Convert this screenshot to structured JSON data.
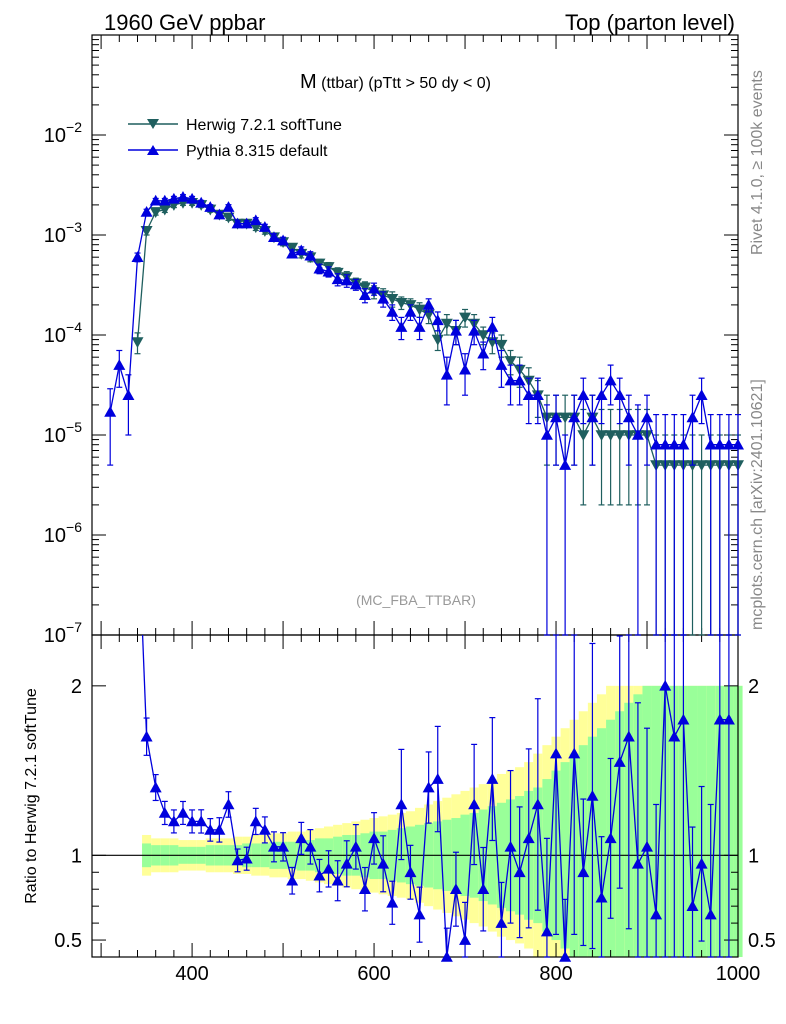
{
  "header": {
    "left": "1960 GeV ppbar",
    "right": "Top (parton level)"
  },
  "side_labels": {
    "rivet": "Rivet 4.1.0, ≥ 100k events",
    "mcplots": "mcplots.cern.ch [arXiv:2401.10621]"
  },
  "chart_data": {
    "type": "line",
    "title_main": "M",
    "title_rest": " (ttbar) (pTtt > 50 dy < 0)",
    "watermark": "(MC_FBA_TTBAR)",
    "xlabel": "",
    "xlim": [
      290,
      1000
    ],
    "xticks": [
      400,
      600,
      800,
      1000
    ],
    "xtick_labels": [
      "400",
      "600",
      "800",
      "1000"
    ],
    "main_ylim": [
      1e-07,
      0.1
    ],
    "main_ylog": true,
    "main_yticks": [
      {
        "base": "10",
        "exp": "−7",
        "value": 1e-07
      },
      {
        "base": "10",
        "exp": "−6",
        "value": 1e-06
      },
      {
        "base": "10",
        "exp": "−5",
        "value": 1e-05
      },
      {
        "base": "10",
        "exp": "−4",
        "value": 0.0001
      },
      {
        "base": "10",
        "exp": "−3",
        "value": 0.001
      },
      {
        "base": "10",
        "exp": "−2",
        "value": 0.01
      }
    ],
    "ratio_ylabel": "Ratio to Herwig 7.2.1 softTune",
    "ratio_ylim": [
      0.4,
      2.3
    ],
    "ratio_yticks": [
      0.5,
      1,
      2
    ],
    "ratio_ytick_labels": [
      "0.5",
      "1",
      "2"
    ],
    "legend": [
      {
        "name": "Herwig 7.2.1 softTune",
        "color": "#1f5f5f",
        "marker": "triangle-down"
      },
      {
        "name": "Pythia 8.315 default",
        "color": "#0000dd",
        "marker": "triangle-up"
      }
    ],
    "x": [
      310,
      320,
      330,
      340,
      350,
      360,
      370,
      380,
      390,
      400,
      410,
      420,
      430,
      440,
      450,
      460,
      470,
      480,
      490,
      500,
      510,
      520,
      530,
      540,
      550,
      560,
      570,
      580,
      590,
      600,
      610,
      620,
      630,
      640,
      650,
      660,
      670,
      680,
      690,
      700,
      710,
      720,
      730,
      740,
      750,
      760,
      770,
      780,
      790,
      800,
      810,
      820,
      830,
      840,
      850,
      860,
      870,
      880,
      890,
      900,
      910,
      920,
      930,
      940,
      950,
      960,
      970,
      980,
      990,
      1000
    ],
    "series": [
      {
        "name": "Herwig 7.2.1 softTune",
        "values": [
          0,
          0,
          0,
          8.5e-05,
          0.0011,
          0.0017,
          0.0018,
          0.002,
          0.0021,
          0.0021,
          0.002,
          0.0018,
          0.0016,
          0.0015,
          0.0013,
          0.0013,
          0.0012,
          0.0011,
          0.00095,
          0.00085,
          0.00075,
          0.00065,
          0.0006,
          0.00052,
          0.00048,
          0.00042,
          0.00038,
          0.00033,
          0.0003,
          0.00027,
          0.00025,
          0.00023,
          0.00021,
          0.0002,
          0.00018,
          0.00016,
          9e-05,
          0.00013,
          0.00011,
          0.00015,
          0.00013,
          0.0001,
          8.5e-05,
          8e-05,
          5.5e-05,
          4.5e-05,
          3.5e-05,
          2.5e-05,
          1.5e-05,
          1.5e-05,
          1.5e-05,
          1.5e-05,
          1e-05,
          1.5e-05,
          1e-05,
          1e-05,
          1e-05,
          1e-05,
          1e-05,
          1e-05,
          5e-06,
          5e-06,
          5e-06,
          5e-06,
          5e-06,
          5e-06,
          5e-06,
          5e-06,
          5e-06,
          5e-06
        ],
        "errors": [
          0,
          0,
          0,
          2e-05,
          0.0001,
          0.00012,
          0.00012,
          0.00012,
          0.00012,
          0.00012,
          0.00012,
          0.00011,
          0.0001,
          0.0001,
          9e-05,
          9e-05,
          9e-05,
          8e-05,
          8e-05,
          7e-05,
          6e-05,
          6e-05,
          6e-05,
          5e-05,
          5e-05,
          5e-05,
          5e-05,
          4e-05,
          4e-05,
          4e-05,
          4e-05,
          4e-05,
          3e-05,
          3e-05,
          3e-05,
          3e-05,
          2e-05,
          3e-05,
          3e-05,
          3e-05,
          3e-05,
          2e-05,
          2e-05,
          2e-05,
          1.5e-05,
          1.5e-05,
          1.2e-05,
          1e-05,
          1e-05,
          1e-05,
          1e-05,
          1e-05,
          8e-06,
          1e-05,
          8e-06,
          8e-06,
          8e-06,
          8e-06,
          8e-06,
          8e-06,
          5e-06,
          5e-06,
          5e-06,
          5e-06,
          5e-06,
          5e-06,
          5e-06,
          5e-06,
          5e-06,
          5e-06
        ]
      },
      {
        "name": "Pythia 8.315 default",
        "values": [
          1.7e-05,
          5e-05,
          2.5e-05,
          0.0006,
          0.0017,
          0.0022,
          0.0022,
          0.0023,
          0.0024,
          0.0023,
          0.0021,
          0.0019,
          0.0016,
          0.0019,
          0.0013,
          0.0013,
          0.0014,
          0.0012,
          0.00095,
          0.00088,
          0.00065,
          0.0007,
          0.00062,
          0.00046,
          0.00043,
          0.00036,
          0.00035,
          0.00032,
          0.00025,
          0.00029,
          0.00023,
          0.00017,
          0.00012,
          0.00017,
          0.00012,
          0.0002,
          0.00014,
          4e-05,
          0.00011,
          4.5e-05,
          0.00011,
          6.5e-05,
          0.00012,
          5e-05,
          3.5e-05,
          3.5e-05,
          2.5e-05,
          2.5e-05,
          1e-05,
          1.5e-05,
          5e-06,
          1.5e-05,
          2.5e-05,
          1.5e-05,
          2.5e-05,
          3.5e-05,
          2.5e-05,
          1.5e-05,
          1e-05,
          1.5e-05,
          8e-06,
          8e-06,
          8e-06,
          8e-06,
          1.5e-05,
          2.5e-05,
          8e-06,
          8e-06,
          8e-06,
          8e-06
        ],
        "errors": [
          1.2e-05,
          2e-05,
          1.5e-05,
          6e-05,
          0.00011,
          0.00012,
          0.00012,
          0.00013,
          0.00013,
          0.00013,
          0.00012,
          0.00011,
          0.0001,
          0.00011,
          9e-05,
          9e-05,
          9e-05,
          8e-05,
          8e-05,
          7e-05,
          6e-05,
          6e-05,
          6e-05,
          5e-05,
          5e-05,
          5e-05,
          5e-05,
          4e-05,
          4e-05,
          4e-05,
          4e-05,
          3e-05,
          3e-05,
          3e-05,
          3e-05,
          3e-05,
          3e-05,
          2e-05,
          3e-05,
          2e-05,
          3e-05,
          2e-05,
          3e-05,
          2e-05,
          1.5e-05,
          1.5e-05,
          1.2e-05,
          1.2e-05,
          1e-05,
          1e-05,
          5e-06,
          1e-05,
          1.2e-05,
          1e-05,
          1.2e-05,
          1.5e-05,
          1.2e-05,
          1e-05,
          1e-05,
          1e-05,
          8e-06,
          8e-06,
          8e-06,
          8e-06,
          1e-05,
          1.2e-05,
          8e-06,
          8e-06,
          8e-06,
          8e-06
        ]
      }
    ],
    "ratio_pythia": [
      null,
      null,
      null,
      null,
      1.7,
      1.4,
      1.25,
      1.2,
      1.25,
      1.2,
      1.2,
      1.15,
      1.15,
      1.3,
      0.97,
      0.98,
      1.2,
      1.15,
      1.05,
      1.05,
      0.85,
      1.1,
      1.05,
      0.88,
      0.92,
      0.85,
      0.95,
      1.05,
      0.8,
      1.1,
      0.95,
      0.72,
      1.3,
      0.9,
      0.65,
      1.4,
      1.45,
      0.38,
      0.8,
      0.5,
      1.3,
      0.8,
      1.45,
      0.6,
      1.05,
      0.9,
      1.1,
      1.3,
      0.55,
      1.6,
      0.37,
      1.6,
      0.9,
      1.35,
      0.75,
      1.1,
      1.55,
      1.7,
      0.95,
      1.05,
      0.65,
      2.0,
      1.7,
      1.8,
      0.7,
      0.95,
      0.65,
      1.8,
      1.8,
      null
    ],
    "ratio_yellow_halfwidth": [
      null,
      null,
      null,
      null,
      0.12,
      0.1,
      0.1,
      0.1,
      0.09,
      0.09,
      0.09,
      0.1,
      0.1,
      0.1,
      0.11,
      0.11,
      0.12,
      0.12,
      0.13,
      0.13,
      0.14,
      0.14,
      0.15,
      0.16,
      0.17,
      0.18,
      0.19,
      0.2,
      0.21,
      0.22,
      0.23,
      0.24,
      0.25,
      0.26,
      0.28,
      0.3,
      0.32,
      0.34,
      0.36,
      0.38,
      0.4,
      0.42,
      0.45,
      0.48,
      0.5,
      0.52,
      0.55,
      0.6,
      0.65,
      0.7,
      0.75,
      0.8,
      0.85,
      0.9,
      0.95,
      1.0,
      1.0,
      1.0,
      1.0,
      1.0,
      1.0,
      1.0,
      1.0,
      1.0,
      1.0,
      1.0,
      1.0,
      1.0,
      1.0,
      1.0
    ],
    "ratio_green_halfwidth": [
      null,
      null,
      null,
      null,
      0.07,
      0.06,
      0.06,
      0.06,
      0.05,
      0.05,
      0.05,
      0.06,
      0.06,
      0.06,
      0.06,
      0.07,
      0.07,
      0.07,
      0.08,
      0.08,
      0.08,
      0.09,
      0.09,
      0.1,
      0.1,
      0.11,
      0.12,
      0.12,
      0.13,
      0.14,
      0.14,
      0.15,
      0.16,
      0.17,
      0.18,
      0.19,
      0.2,
      0.21,
      0.22,
      0.24,
      0.25,
      0.27,
      0.29,
      0.31,
      0.33,
      0.35,
      0.38,
      0.4,
      0.45,
      0.5,
      0.55,
      0.6,
      0.65,
      0.7,
      0.75,
      0.8,
      0.85,
      0.9,
      0.95,
      1.0,
      1.0,
      1.0,
      1.0,
      1.0,
      1.0,
      1.0,
      1.0,
      1.0,
      1.0,
      1.0
    ]
  }
}
